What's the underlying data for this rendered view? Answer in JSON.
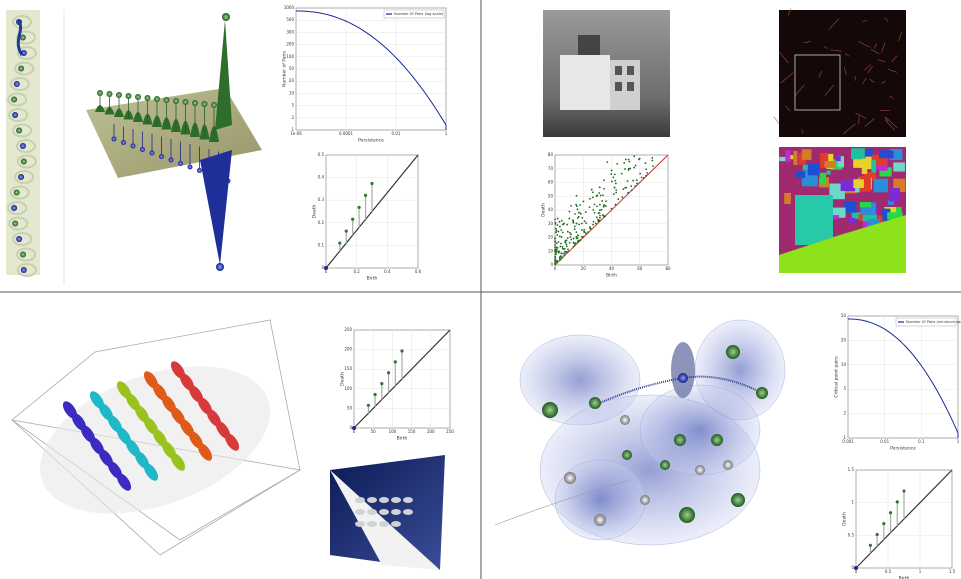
{
  "charts": [
    {
      "type": "curve",
      "legend": "Number Of Pairs (log scale)",
      "x_label": "Persistence",
      "y_label": "Number of Pairs",
      "yticks": [
        "1000",
        "500",
        "300",
        "200",
        "100",
        "50",
        "20",
        "10",
        "5",
        "2",
        "1"
      ],
      "xticks": [
        "1e-06",
        "0.0001",
        "0.01",
        "1"
      ]
    },
    {
      "type": "diagram",
      "x_label": "Birth",
      "y_label": "Death",
      "yticks": [
        "0",
        "0.1",
        "0.2",
        "0.3",
        "0.4",
        "0.5"
      ],
      "xticks": [
        "0",
        "0.2",
        "0.4",
        "0.6"
      ]
    },
    {
      "type": "scatter",
      "x_label": "Birth",
      "y_label": "Death",
      "yticks": [
        "0",
        "10",
        "20",
        "30",
        "40",
        "50",
        "60",
        "70",
        "80"
      ],
      "xticks": [
        "0",
        "20",
        "40",
        "60",
        "80"
      ]
    },
    {
      "type": "diagram",
      "x_label": "Birth",
      "y_label": "Death",
      "yticks": [
        "0",
        "50",
        "100",
        "150",
        "200",
        "250"
      ],
      "xticks": [
        "0",
        "50",
        "100",
        "150",
        "200",
        "250"
      ]
    },
    {
      "type": "curve",
      "legend": "Number Of Pairs (minimum-saddle pairs)",
      "x_label": "Persistence",
      "y_label": "Critical point pairs",
      "yticks": [
        "50",
        "20",
        "10",
        "5",
        "2",
        "1"
      ],
      "xticks": [
        "0.001",
        "0.01",
        "0.1",
        "1"
      ]
    },
    {
      "type": "diagram",
      "x_label": "Birth",
      "y_label": "Death",
      "yticks": [
        "0",
        "0.5",
        "1",
        "1.5"
      ],
      "xticks": [
        "0",
        "0.5",
        "1",
        "1.5"
      ]
    }
  ]
}
